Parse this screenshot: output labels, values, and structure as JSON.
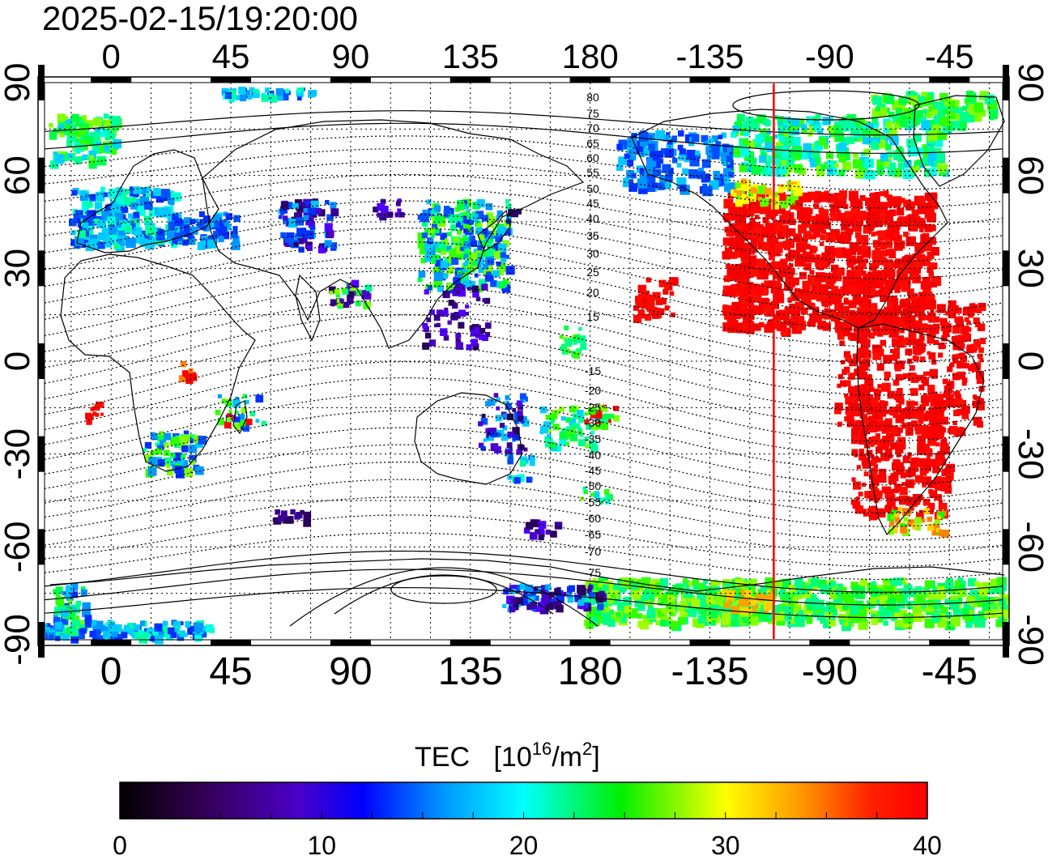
{
  "title": "2025-02-15/19:20:00",
  "lon_ticks": [
    "0",
    "45",
    "90",
    "135",
    "180",
    "-135",
    "-90",
    "-45"
  ],
  "lat_ticks": [
    "90",
    "60",
    "30",
    "0",
    "-30",
    "-60",
    "-90"
  ],
  "contour_labels": [
    "80",
    "75",
    "70",
    "65",
    "60",
    "55",
    "50",
    "45",
    "40",
    "35",
    "30",
    "25",
    "20",
    "15",
    "-15",
    "-20",
    "-25",
    "-30",
    "-35",
    "-40",
    "-45",
    "-50",
    "-55",
    "-60",
    "-65",
    "-70",
    "-75"
  ],
  "colorbar": {
    "title": "TEC",
    "unit_base": "10",
    "unit_exp": "16",
    "unit_mid": "/m",
    "unit_exp2": "2",
    "ticks": [
      "0",
      "10",
      "20",
      "30",
      "40"
    ],
    "min": 0,
    "max": 40
  },
  "map": {
    "lon_range": [
      -25,
      335
    ],
    "lat_range": [
      -90,
      90
    ],
    "terminator_lon": -111,
    "colors": {
      "terminator": "#ff0000",
      "high_tec": "#ff0000"
    }
  }
}
